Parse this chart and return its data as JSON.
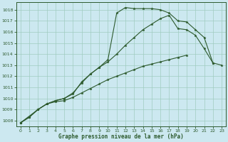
{
  "xlabel": "Graphe pression niveau de la mer (hPa)",
  "xlim": [
    -0.5,
    23.5
  ],
  "ylim": [
    1007.5,
    1018.7
  ],
  "yticks": [
    1008,
    1009,
    1010,
    1011,
    1012,
    1013,
    1014,
    1015,
    1016,
    1017,
    1018
  ],
  "xticks": [
    0,
    1,
    2,
    3,
    4,
    5,
    6,
    7,
    8,
    9,
    10,
    11,
    12,
    13,
    14,
    15,
    16,
    17,
    18,
    19,
    20,
    21,
    22,
    23
  ],
  "bg_color": "#cce8f0",
  "grid_color": "#a0ccc0",
  "line_color": "#2d5a2d",
  "line1_x": [
    0,
    1,
    2,
    3,
    4,
    5,
    6,
    7,
    8,
    9,
    10,
    11,
    12,
    13,
    14,
    15,
    16,
    17,
    18,
    19,
    20,
    21,
    22
  ],
  "line1_y": [
    1007.8,
    1008.3,
    1009.0,
    1009.5,
    1009.8,
    1010.0,
    1010.5,
    1011.4,
    1012.2,
    1012.8,
    1013.5,
    1017.7,
    1018.2,
    1018.1,
    1018.1,
    1018.1,
    1018.0,
    1017.7,
    1017.0,
    1016.9,
    1016.2,
    1015.5,
    1013.2
  ],
  "line2_x": [
    0,
    2,
    3,
    4,
    5,
    6,
    7,
    8,
    9,
    10,
    11,
    12,
    13,
    14,
    15,
    16,
    17,
    18,
    19,
    20,
    21,
    22,
    23
  ],
  "line2_y": [
    1007.8,
    1009.0,
    1009.5,
    1009.8,
    1010.0,
    1010.4,
    1011.5,
    1012.2,
    1012.8,
    1013.3,
    1014.0,
    1014.8,
    1015.5,
    1016.2,
    1016.7,
    1017.2,
    1017.5,
    1016.3,
    1016.2,
    1015.7,
    1014.5,
    1013.2,
    1013.0
  ],
  "line3_x": [
    0,
    1,
    2,
    3,
    4,
    5,
    6,
    7,
    8,
    9,
    10,
    11,
    12,
    13,
    14,
    15,
    16,
    17,
    18,
    19
  ],
  "line3_y": [
    1007.8,
    1008.3,
    1009.0,
    1009.5,
    1009.7,
    1009.8,
    1010.1,
    1010.5,
    1010.9,
    1011.3,
    1011.7,
    1012.0,
    1012.3,
    1012.6,
    1012.9,
    1013.1,
    1013.3,
    1013.5,
    1013.7,
    1013.9
  ]
}
